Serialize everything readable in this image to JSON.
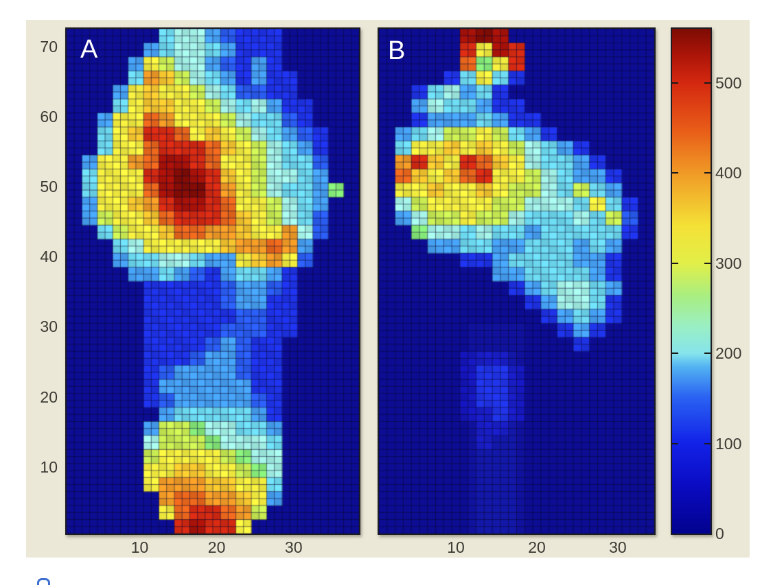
{
  "figure": {
    "outer_background": "#ffffff",
    "figure_background": "#ece8d8",
    "axes_background": "#0d0d94",
    "axes_border_color": "#1c1c24",
    "grid_line_color": "rgba(8,8,45,0.55)",
    "tick_label_color": "#3b3b33",
    "panel_label_color": "#ffffff",
    "artifact_color": "#3e6fd0"
  },
  "palette": {
    "encoding": "grid character -> estimated pressure value and jet-colormap display color; '.' is zero/background",
    "codes": {
      ".": {
        "value": 0,
        "color": "#0d0d94"
      },
      "1": {
        "value": 60,
        "color": "#1414b8"
      },
      "2": {
        "value": 110,
        "color": "#1e32e6"
      },
      "3": {
        "value": 150,
        "color": "#2a5cf0"
      },
      "4": {
        "value": 185,
        "color": "#46a0f2"
      },
      "5": {
        "value": 215,
        "color": "#6cd8ee"
      },
      "6": {
        "value": 235,
        "color": "#a2efe4"
      },
      "7": {
        "value": 275,
        "color": "#84e878"
      },
      "8": {
        "value": 305,
        "color": "#c8ec52"
      },
      "9": {
        "value": 335,
        "color": "#f2ec3e"
      },
      "a": {
        "value": 375,
        "color": "#f5c62e"
      },
      "b": {
        "value": 415,
        "color": "#f09a26"
      },
      "c": {
        "value": 455,
        "color": "#e8661c"
      },
      "d": {
        "value": 500,
        "color": "#d42a12"
      },
      "e": {
        "value": 535,
        "color": "#a81208"
      },
      "f": {
        "value": 555,
        "color": "#800c04"
      }
    }
  },
  "chart_data": [
    {
      "type": "heatmap",
      "label": "A",
      "x_ticks": [
        10,
        20,
        30
      ],
      "y_ticks": [
        10,
        20,
        30,
        40,
        50,
        60,
        70
      ],
      "x_range": [
        0.5,
        38.5
      ],
      "y_range": [
        0.5,
        72.5
      ],
      "grid": {
        "cols": 19,
        "rows": 36,
        "cell_span": 2,
        "encoding": "each character covers 2x2 sensor cells; rows listed top (y=72) to bottom (y=1); codes defined in palette.codes",
        "rows_top_to_bottom": [
          "......56643222.....",
          ".....456654222.....",
          "....4986643242.....",
          "....5ba86542422....",
          "...49a998653322....",
          "...59aa998656422...",
          "..499cb999865532...",
          "..59addc9a9865432..",
          "..599cdddca986542..",
          ".499bceedc9986553..",
          ".5999defeda986654..",
          ".5999ceffdb9865547.",
          ".499abdeedc998654..",
          ".4899acdddca98653..",
          "..5899accbba99b63..",
          "...5699999abbcb4...",
          "...455665449ab93...",
          "....44543245542....",
          ".....2222234432....",
          ".....2222234422....",
          ".....2222223322....",
          ".....2222233322....",
          ".....222234322.....",
          ".....222344322.....",
          ".....234444322.....",
          ".....244444422.....",
          ".....234444432.....",
          "......45555542.....",
          ".....488766554.....",
          ".....688876665.....",
          ".....899998766.....",
          ".....99aa99876.....",
          ".....9bbbaa995.....",
          "......bccbba94.....",
          "......9cddcb8......",
          ".......dedd9......."
        ]
      }
    },
    {
      "type": "heatmap",
      "label": "B",
      "x_ticks": [
        10,
        20,
        30
      ],
      "y_ticks": [],
      "x_range": [
        0.5,
        34.5
      ],
      "y_range": [
        0.5,
        72.5
      ],
      "grid": {
        "cols": 17,
        "rows": 36,
        "cell_span": 2,
        "encoding": "each character covers 2x2 sensor cells; rows listed top (y=72) to bottom (y=1); codes defined in palette.codes",
        "rows_top_to_bottom": [
          ".....efe.........",
          ".....d9ed........",
          ".....c79d........",
          "....25952........",
          "..256452.........",
          "..4655422........",
          "..24445422.......",
          ".4568898542......",
          ".599a9a986542....",
          ".bda9dca965542...",
          ".ca9acd99865442..",
          ".99a99a98865854..",
          ".689999886665952.",
          ".468898865556583.",
          "..76656554555552.",
          "...445544555454..",
          ".....2245555442..",
          ".......44555542..",
          "........2456654..",
          ".........246652..",
          "..........24542..",
          "...........242...",
          "............2....",
          ".....111.........",
          ".....1221........",
          ".....1221........",
          ".....1221........",
          ".....1121........",
          "......11.........",
          "......1..........",
          ".................",
          ".................",
          ".................",
          ".................",
          ".................",
          "................."
        ]
      }
    },
    {
      "type": "colorbar",
      "ticks": [
        0,
        100,
        200,
        300,
        400,
        500
      ],
      "range": [
        0,
        560
      ],
      "gradient_stops": [
        {
          "pos": 0.0,
          "color": "#02028e"
        },
        {
          "pos": 0.09,
          "color": "#0a0ac0"
        },
        {
          "pos": 0.179,
          "color": "#1222e8"
        },
        {
          "pos": 0.27,
          "color": "#2a62f2"
        },
        {
          "pos": 0.33,
          "color": "#52b2f2"
        },
        {
          "pos": 0.357,
          "color": "#86e4ec"
        },
        {
          "pos": 0.41,
          "color": "#9aefc4"
        },
        {
          "pos": 0.47,
          "color": "#a8ee82"
        },
        {
          "pos": 0.536,
          "color": "#e2ef48"
        },
        {
          "pos": 0.61,
          "color": "#f4e136"
        },
        {
          "pos": 0.714,
          "color": "#f09a26"
        },
        {
          "pos": 0.8,
          "color": "#e85c18"
        },
        {
          "pos": 0.893,
          "color": "#d42810"
        },
        {
          "pos": 0.95,
          "color": "#aa1408"
        },
        {
          "pos": 1.0,
          "color": "#7c0c04"
        }
      ]
    }
  ]
}
